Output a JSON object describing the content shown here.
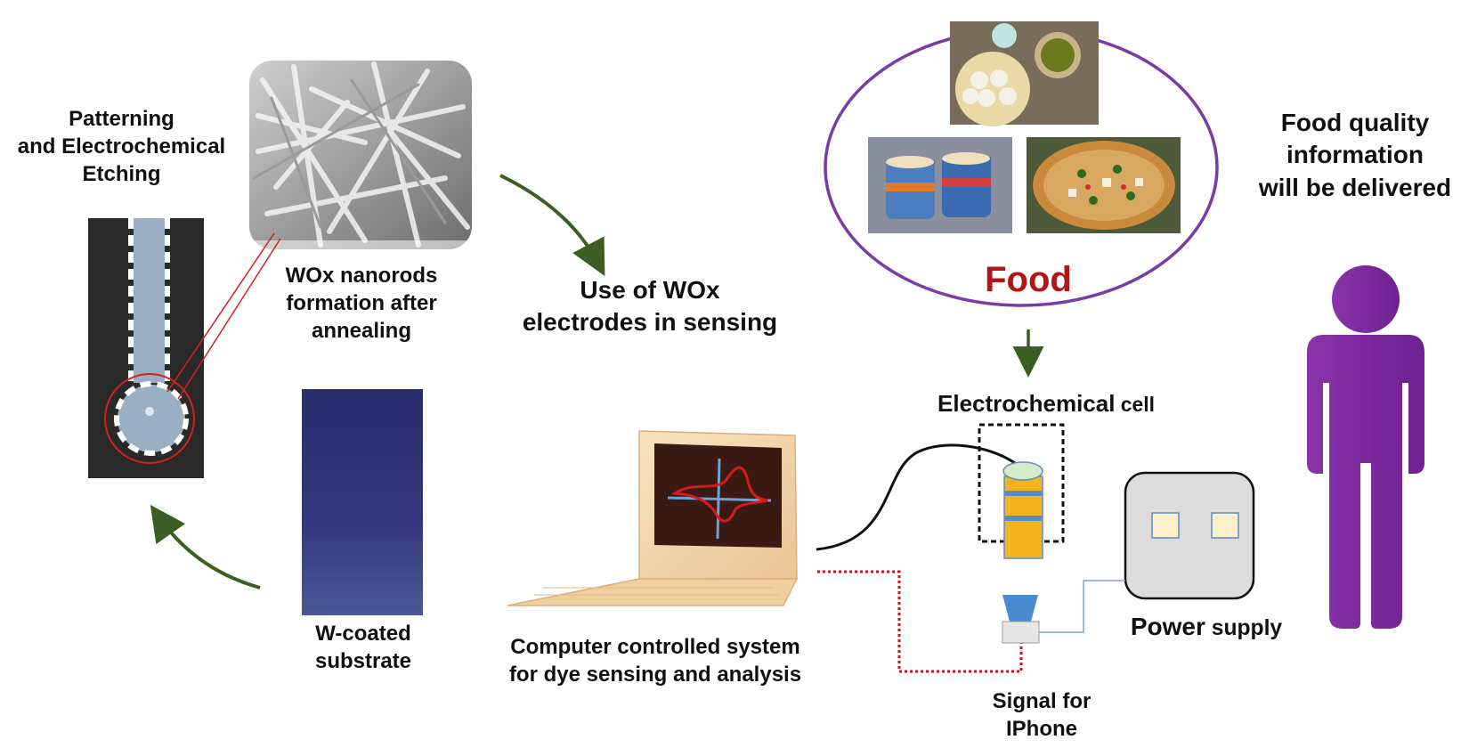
{
  "labels": {
    "patterning": [
      "Patterning",
      "and Electrochemical",
      "Etching"
    ],
    "nanorods": [
      "WOx nanorods",
      "formation after",
      "annealing"
    ],
    "use_wox": [
      "Use of WOx",
      "electrodes in sensing"
    ],
    "food": "Food",
    "food_quality": [
      "Food quality",
      "information",
      "will be delivered"
    ],
    "electrochemical_cell": {
      "main": "Electrochemical",
      "suffix": " cell"
    },
    "w_coated": [
      "W-coated",
      "substrate"
    ],
    "computer": [
      "Computer controlled system",
      "for dye sensing and analysis"
    ],
    "power_supply": {
      "main": "Power",
      "suffix": " supply"
    },
    "signal": [
      "Signal for",
      "IPhone"
    ]
  },
  "colors": {
    "arrow_green": "#3b5e22",
    "food_red": "#b01518",
    "ellipse_purple": "#7a3aa8",
    "person_purple": "#7a2a9a",
    "electrode_orange": "#f2b31c",
    "electrode_blue": "#5b8ec9",
    "signal_red": "#c0181c",
    "highlight_red": "#d42020"
  },
  "icons": {
    "sem": "sem-micrograph-icon",
    "electrode": "patterned-electrode-icon",
    "substrate": "w-coated-substrate-icon",
    "laptop": "laptop-icon",
    "cell": "electrochemical-cell-icon",
    "power": "power-supply-icon",
    "phone_sensor": "signal-sensor-icon",
    "person": "person-icon",
    "food_photos": [
      "idli-photo-icon",
      "tea-cups-photo-icon",
      "pizza-photo-icon"
    ]
  }
}
